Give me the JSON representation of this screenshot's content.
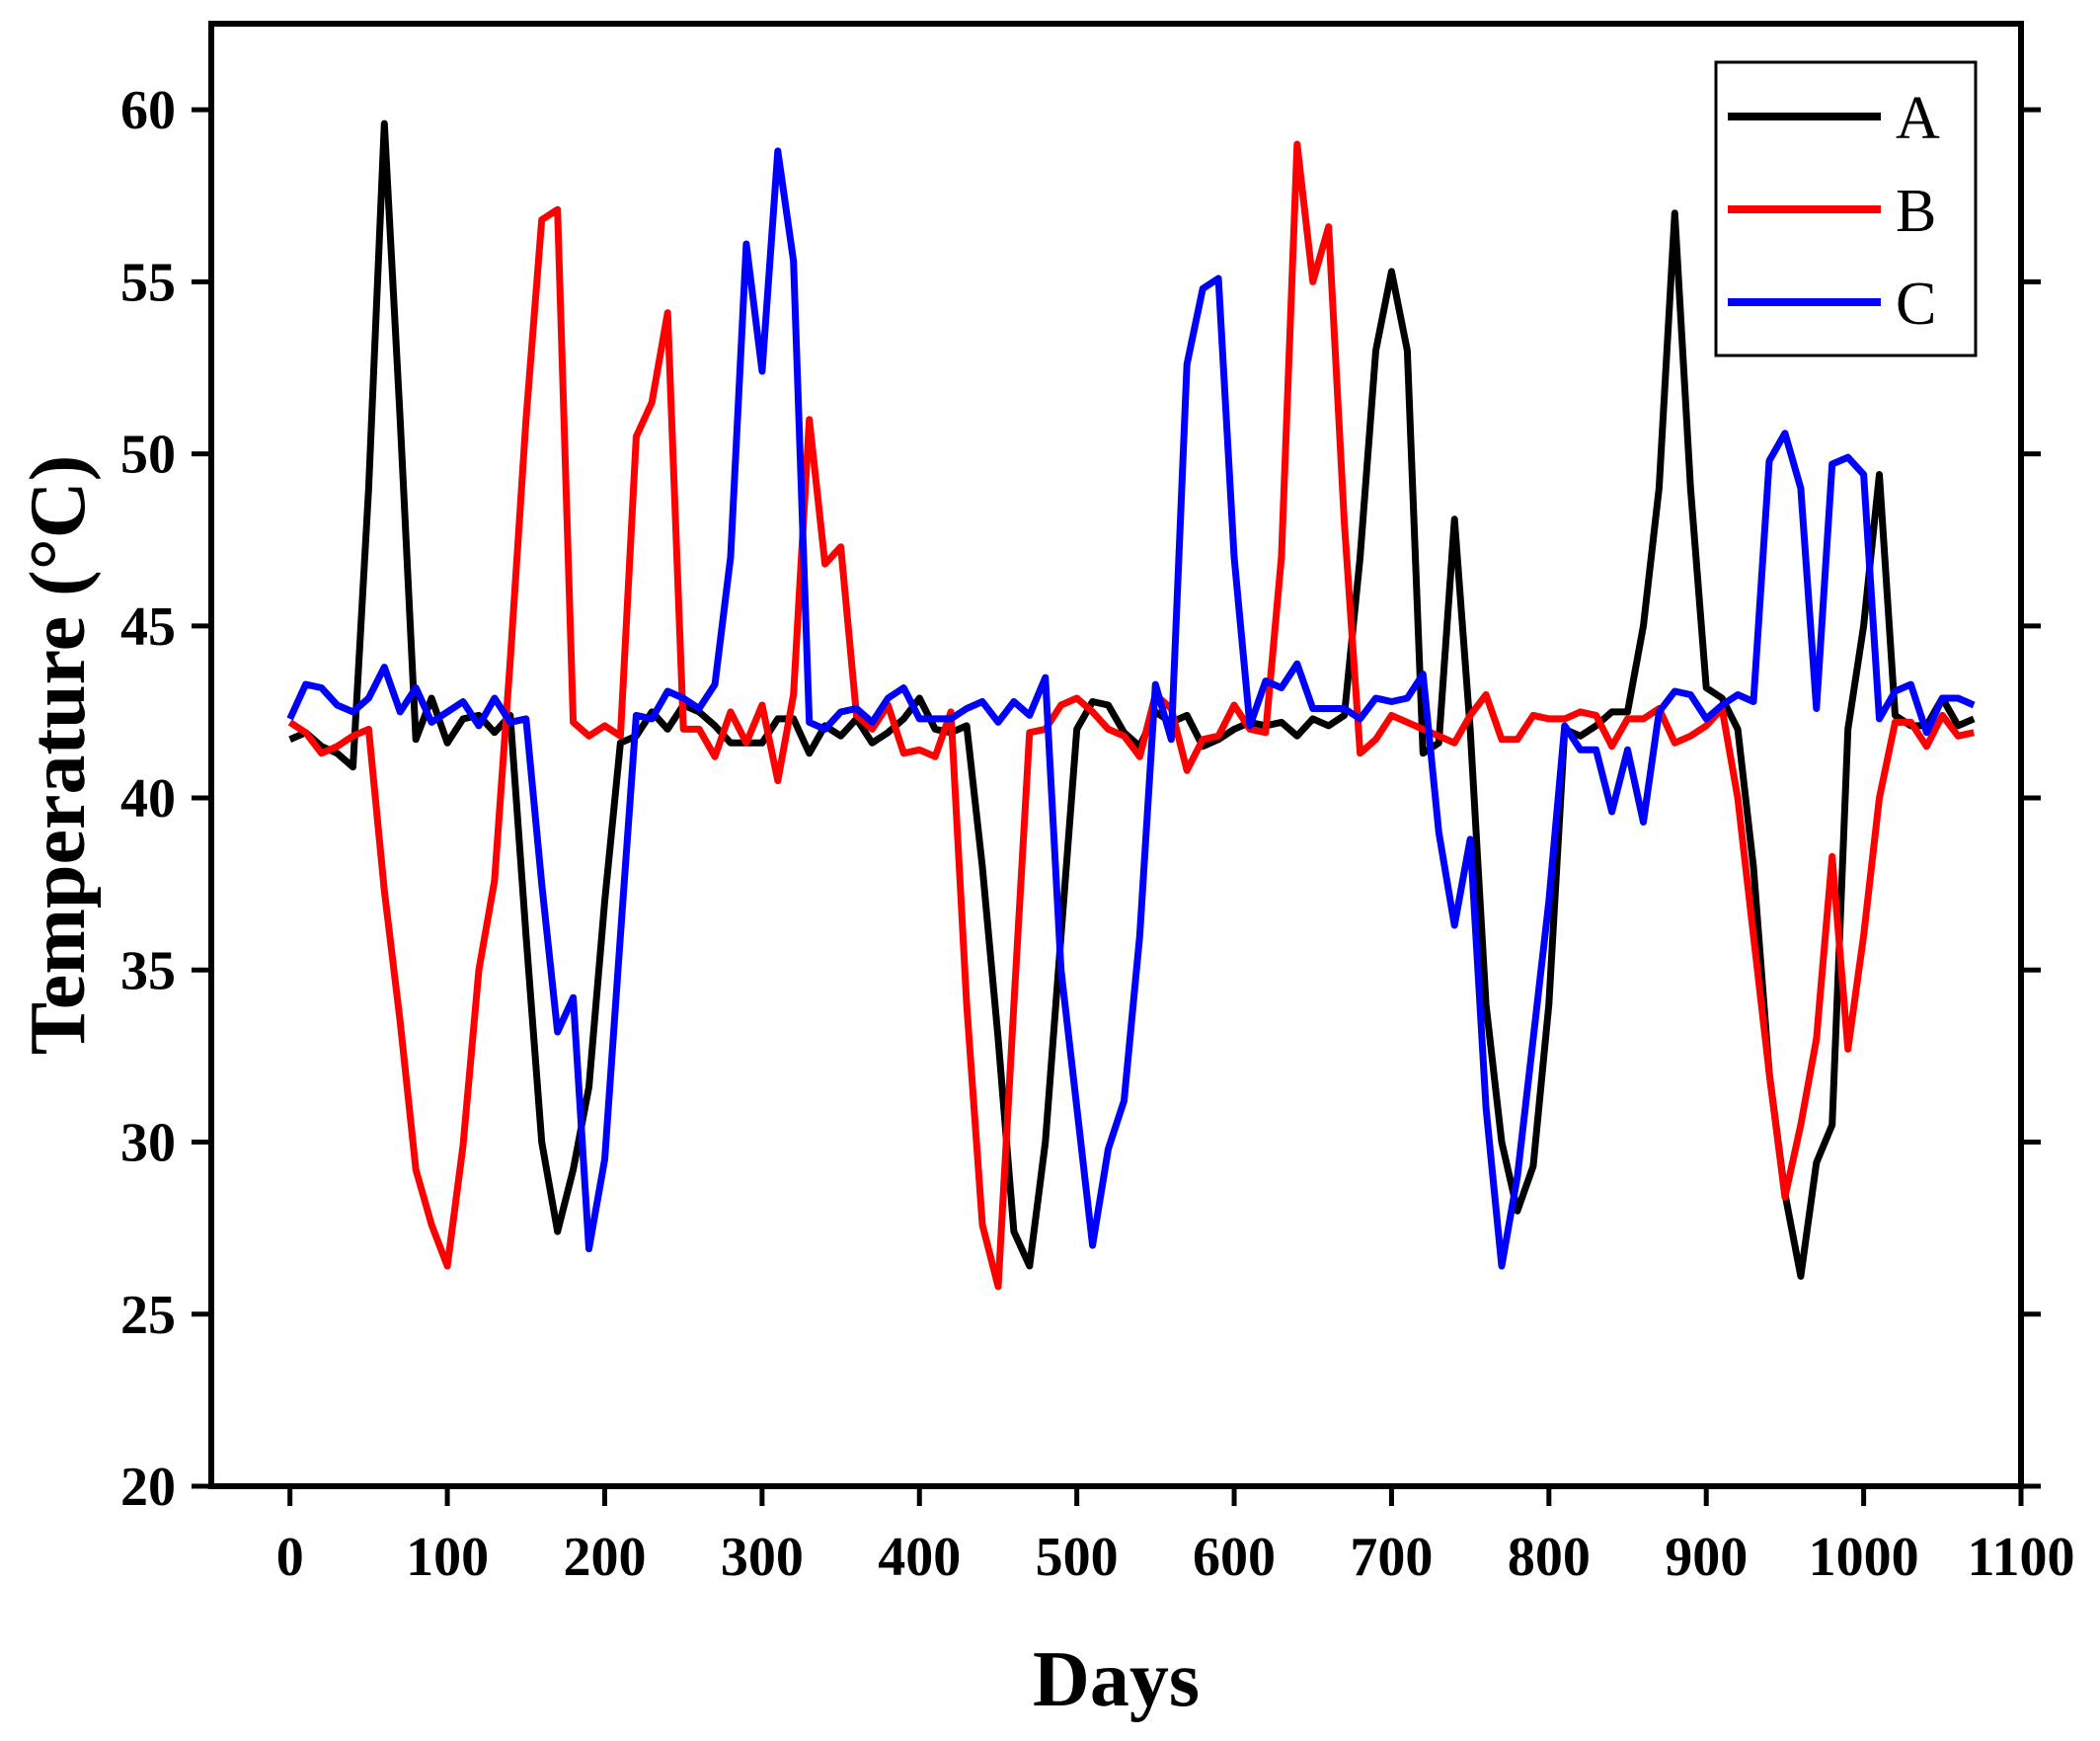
{
  "chart_data": {
    "type": "line",
    "title": "",
    "xlabel": "Days",
    "ylabel": "Temperature (°C)",
    "xlim": [
      -50,
      1100
    ],
    "ylim": [
      20,
      62.5
    ],
    "xticks": [
      0,
      100,
      200,
      300,
      400,
      500,
      600,
      700,
      800,
      900,
      1000,
      1100
    ],
    "xtick_labels": [
      "0",
      "100",
      "200",
      "300",
      "400",
      "500",
      "600",
      "700",
      "800",
      "900",
      "1000",
      "1100"
    ],
    "yticks": [
      20,
      25,
      30,
      35,
      40,
      45,
      50,
      55,
      60
    ],
    "ytick_labels": [
      "20",
      "25",
      "30",
      "35",
      "40",
      "45",
      "50",
      "55",
      "60"
    ],
    "legend_position": "top-right",
    "grid": false,
    "series": [
      {
        "name": "A",
        "color": "#000000",
        "x": [
          0,
          10,
          20,
          30,
          40,
          50,
          60,
          70,
          80,
          90,
          100,
          110,
          120,
          130,
          140,
          150,
          160,
          170,
          180,
          190,
          200,
          210,
          220,
          230,
          240,
          250,
          260,
          270,
          280,
          290,
          300,
          310,
          320,
          330,
          340,
          350,
          360,
          370,
          380,
          390,
          400,
          410,
          420,
          430,
          440,
          450,
          460,
          470,
          480,
          490,
          500,
          510,
          520,
          530,
          540,
          550,
          560,
          570,
          580,
          590,
          600,
          610,
          620,
          630,
          640,
          650,
          660,
          670,
          680,
          690,
          700,
          710,
          720,
          730,
          740,
          750,
          760,
          770,
          780,
          790,
          800,
          810,
          820,
          830,
          840,
          850,
          860,
          870,
          880,
          890,
          900,
          910,
          920,
          930,
          940,
          950,
          960,
          970,
          980,
          990,
          1000,
          1010,
          1020,
          1030,
          1040,
          1050,
          1060,
          1070
        ],
        "values": [
          41.7,
          41.9,
          41.5,
          41.3,
          40.9,
          49.0,
          59.6,
          51.0,
          41.7,
          42.9,
          41.6,
          42.3,
          42.4,
          41.9,
          42.4,
          36.0,
          30.0,
          27.4,
          29.2,
          31.6,
          37.0,
          41.6,
          41.8,
          42.5,
          42.0,
          42.7,
          42.5,
          42.1,
          41.6,
          41.6,
          41.6,
          42.3,
          42.3,
          41.3,
          42.1,
          41.8,
          42.3,
          41.6,
          41.9,
          42.3,
          42.9,
          42.0,
          41.9,
          42.1,
          38.0,
          33.0,
          27.4,
          26.4,
          30.0,
          36.0,
          42.0,
          42.8,
          42.7,
          41.9,
          41.5,
          42.5,
          42.2,
          42.4,
          41.5,
          41.7,
          42.0,
          42.2,
          42.1,
          42.2,
          41.8,
          42.3,
          42.1,
          42.4,
          47.0,
          53.0,
          55.3,
          53.0,
          41.3,
          41.6,
          48.1,
          42.0,
          34.0,
          30.0,
          28.0,
          29.3,
          34.0,
          42.0,
          41.8,
          42.1,
          42.5,
          42.5,
          45.0,
          49.0,
          57.0,
          49.0,
          43.2,
          42.9,
          42.0,
          38.0,
          32.0,
          28.5,
          26.1,
          29.4,
          30.5,
          42.0,
          45.0,
          49.4,
          42.4,
          42.1,
          42.1,
          42.9,
          42.1,
          42.3
        ]
      },
      {
        "name": "B",
        "color": "#ff0000",
        "x": [
          0,
          10,
          20,
          30,
          40,
          50,
          60,
          70,
          80,
          90,
          100,
          110,
          120,
          130,
          140,
          150,
          160,
          170,
          180,
          190,
          200,
          210,
          220,
          230,
          240,
          250,
          260,
          270,
          280,
          290,
          300,
          310,
          320,
          330,
          340,
          350,
          360,
          370,
          380,
          390,
          400,
          410,
          420,
          430,
          440,
          450,
          460,
          470,
          480,
          490,
          500,
          510,
          520,
          530,
          540,
          550,
          560,
          570,
          580,
          590,
          600,
          610,
          620,
          630,
          640,
          650,
          660,
          670,
          680,
          690,
          700,
          710,
          720,
          730,
          740,
          750,
          760,
          770,
          780,
          790,
          800,
          810,
          820,
          830,
          840,
          850,
          860,
          870,
          880,
          890,
          900,
          910,
          920,
          930,
          940,
          950,
          960,
          970,
          980,
          990,
          1000,
          1010,
          1020,
          1030,
          1040,
          1050,
          1060,
          1070
        ],
        "values": [
          42.2,
          41.9,
          41.3,
          41.5,
          41.8,
          42.0,
          37.3,
          33.5,
          29.2,
          27.6,
          26.4,
          29.9,
          35.0,
          37.6,
          44.0,
          51.0,
          56.8,
          57.1,
          42.2,
          41.8,
          42.1,
          41.8,
          50.5,
          51.5,
          54.1,
          42.0,
          42.0,
          41.2,
          42.5,
          41.6,
          42.7,
          40.5,
          43.0,
          51.0,
          46.8,
          47.3,
          42.4,
          42.0,
          42.7,
          41.3,
          41.4,
          41.2,
          42.5,
          34.0,
          27.6,
          25.8,
          34.0,
          41.9,
          42.0,
          42.7,
          42.9,
          42.5,
          42.0,
          41.8,
          41.2,
          43.0,
          42.6,
          40.8,
          41.7,
          41.8,
          42.7,
          42.0,
          41.9,
          47.0,
          59.0,
          55.0,
          56.6,
          48.0,
          41.3,
          41.7,
          42.4,
          42.2,
          42.0,
          41.8,
          41.6,
          42.4,
          43.0,
          41.7,
          41.7,
          42.4,
          42.3,
          42.3,
          42.5,
          42.4,
          41.5,
          42.3,
          42.3,
          42.6,
          41.6,
          41.8,
          42.1,
          42.6,
          40.0,
          36.0,
          32.0,
          28.4,
          30.5,
          33.0,
          38.3,
          32.7,
          36.0,
          40.0,
          42.2,
          42.2,
          41.5,
          42.4,
          41.8,
          41.9
        ]
      },
      {
        "name": "C",
        "color": "#0000ff",
        "x": [
          0,
          10,
          20,
          30,
          40,
          50,
          60,
          70,
          80,
          90,
          100,
          110,
          120,
          130,
          140,
          150,
          160,
          170,
          180,
          190,
          200,
          210,
          220,
          230,
          240,
          250,
          260,
          270,
          280,
          290,
          300,
          310,
          320,
          330,
          340,
          350,
          360,
          370,
          380,
          390,
          400,
          410,
          420,
          430,
          440,
          450,
          460,
          470,
          480,
          490,
          500,
          510,
          520,
          530,
          540,
          550,
          560,
          570,
          580,
          590,
          600,
          610,
          620,
          630,
          640,
          650,
          660,
          670,
          680,
          690,
          700,
          710,
          720,
          730,
          740,
          750,
          760,
          770,
          780,
          790,
          800,
          810,
          820,
          830,
          840,
          850,
          860,
          870,
          880,
          890,
          900,
          910,
          920,
          930,
          940,
          950,
          960,
          970,
          980,
          990,
          1000,
          1010,
          1020,
          1030,
          1040,
          1050,
          1060,
          1070
        ],
        "values": [
          42.3,
          43.3,
          43.2,
          42.7,
          42.5,
          42.9,
          43.8,
          42.5,
          43.2,
          42.2,
          42.5,
          42.8,
          42.1,
          42.9,
          42.2,
          42.3,
          37.5,
          33.2,
          34.2,
          26.9,
          29.5,
          36.0,
          42.4,
          42.3,
          43.1,
          42.9,
          42.6,
          43.3,
          47.0,
          56.1,
          52.4,
          58.8,
          55.6,
          42.2,
          42.0,
          42.5,
          42.6,
          42.2,
          42.9,
          43.2,
          42.3,
          42.3,
          42.3,
          42.6,
          42.8,
          42.2,
          42.8,
          42.4,
          43.5,
          35.0,
          31.0,
          27.0,
          29.8,
          31.2,
          36.0,
          43.3,
          41.7,
          52.6,
          54.8,
          55.1,
          47.0,
          42.1,
          43.4,
          43.2,
          43.9,
          42.6,
          42.6,
          42.6,
          42.3,
          42.9,
          42.8,
          42.9,
          43.6,
          39.0,
          36.3,
          38.8,
          31.0,
          26.4,
          29.0,
          33.0,
          37.0,
          42.1,
          41.4,
          41.4,
          39.6,
          41.4,
          39.3,
          42.5,
          43.1,
          43.0,
          42.3,
          42.7,
          43.0,
          42.8,
          49.8,
          50.6,
          49.0,
          42.6,
          49.7,
          49.9,
          49.4,
          42.3,
          43.1,
          43.3,
          41.9,
          42.9,
          42.9,
          42.7
        ]
      }
    ]
  }
}
